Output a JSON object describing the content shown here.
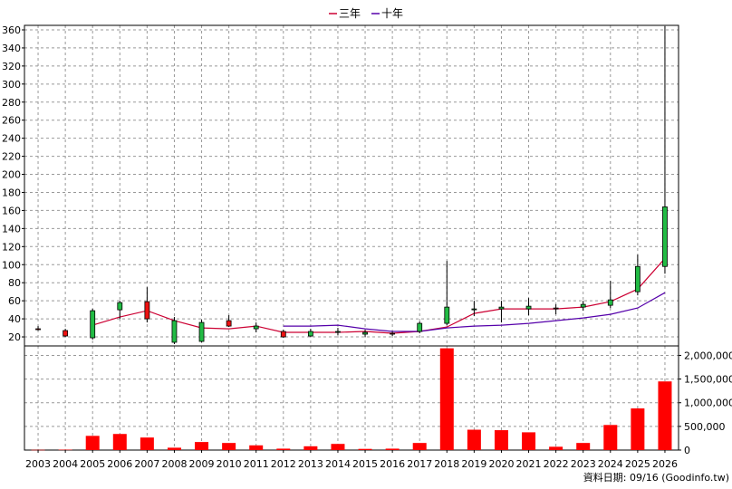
{
  "chart_data": [
    {
      "type": "candlestick",
      "x": [
        "2003",
        "2004",
        "2005",
        "2006",
        "2007",
        "2008",
        "2009",
        "2010",
        "2011",
        "2012",
        "2013",
        "2014",
        "2015",
        "2016",
        "2017",
        "2018",
        "2019",
        "2020",
        "2021",
        "2022",
        "2023",
        "2024",
        "2025",
        "2026"
      ],
      "ylim": [
        10,
        365
      ],
      "yticks": [
        20,
        40,
        60,
        80,
        100,
        120,
        140,
        160,
        180,
        200,
        220,
        240,
        260,
        280,
        300,
        320,
        340,
        360
      ],
      "grid": true,
      "candles": [
        {
          "open": 29,
          "close": 29,
          "high": 32,
          "low": 27
        },
        {
          "open": 21,
          "close": 27,
          "high": 29,
          "low": 20
        },
        {
          "open": 49,
          "close": 19,
          "high": 51,
          "low": 17
        },
        {
          "open": 58,
          "close": 50,
          "high": 60,
          "low": 40
        },
        {
          "open": 40,
          "close": 59,
          "high": 75,
          "low": 36
        },
        {
          "open": 38,
          "close": 14,
          "high": 42,
          "low": 12
        },
        {
          "open": 36,
          "close": 15,
          "high": 39,
          "low": 14
        },
        {
          "open": 32,
          "close": 38,
          "high": 44,
          "low": 31
        },
        {
          "open": 32,
          "close": 29,
          "high": 36,
          "low": 25
        },
        {
          "open": 20,
          "close": 26,
          "high": 28,
          "low": 19
        },
        {
          "open": 26,
          "close": 21,
          "high": 29,
          "low": 20
        },
        {
          "open": 26,
          "close": 25,
          "high": 30,
          "low": 22
        },
        {
          "open": 25,
          "close": 23,
          "high": 28,
          "low": 20
        },
        {
          "open": 24,
          "close": 24,
          "high": 26,
          "low": 21
        },
        {
          "open": 35,
          "close": 26,
          "high": 37,
          "low": 24
        },
        {
          "open": 53,
          "close": 35,
          "high": 104,
          "low": 33
        },
        {
          "open": 51,
          "close": 50,
          "high": 60,
          "low": 43
        },
        {
          "open": 53,
          "close": 51,
          "high": 60,
          "low": 36
        },
        {
          "open": 54,
          "close": 51,
          "high": 63,
          "low": 44
        },
        {
          "open": 52,
          "close": 52,
          "high": 56,
          "low": 45
        },
        {
          "open": 56,
          "close": 53,
          "high": 60,
          "low": 49
        },
        {
          "open": 61,
          "close": 55,
          "high": 82,
          "low": 52
        },
        {
          "open": 98,
          "close": 70,
          "high": 111,
          "low": 66
        },
        {
          "open": 164,
          "close": 98,
          "high": 364,
          "low": 90
        }
      ],
      "series": [
        {
          "name": "三年",
          "color": "#cc0033",
          "values": [
            null,
            null,
            33,
            42,
            49,
            38,
            30,
            29,
            32,
            25,
            25,
            25,
            26,
            24,
            26,
            31,
            46,
            51,
            51,
            51,
            53,
            59,
            73,
            107
          ]
        },
        {
          "name": "十年",
          "color": "#5500aa",
          "values": [
            null,
            null,
            null,
            null,
            null,
            null,
            null,
            null,
            null,
            32,
            32,
            33,
            29,
            26,
            26,
            30,
            32,
            33,
            35,
            38,
            41,
            45,
            52,
            69
          ]
        }
      ],
      "legend": "top-center"
    },
    {
      "type": "bar",
      "x": [
        "2003",
        "2004",
        "2005",
        "2006",
        "2007",
        "2008",
        "2009",
        "2010",
        "2011",
        "2012",
        "2013",
        "2014",
        "2015",
        "2016",
        "2017",
        "2018",
        "2019",
        "2020",
        "2021",
        "2022",
        "2023",
        "2024",
        "2025",
        "2026"
      ],
      "values": [
        5000,
        8000,
        300000,
        340000,
        265000,
        50000,
        170000,
        150000,
        100000,
        30000,
        80000,
        130000,
        25000,
        30000,
        150000,
        2150000,
        430000,
        420000,
        375000,
        70000,
        150000,
        530000,
        880000,
        1450000
      ],
      "ylim": [
        0,
        2200000
      ],
      "yticks": [
        "0",
        "500,000",
        "1,000,000",
        "1,500,000",
        "2,000,000"
      ],
      "ytick_values": [
        0,
        500000,
        1000000,
        1500000,
        2000000
      ],
      "color": "#ff0000",
      "grid": true
    }
  ],
  "credit": "資料日期: 09/16 (Goodinfo.tw)",
  "colors": {
    "up": "#ee1111",
    "down": "#22bb44",
    "grid": "#999999"
  }
}
